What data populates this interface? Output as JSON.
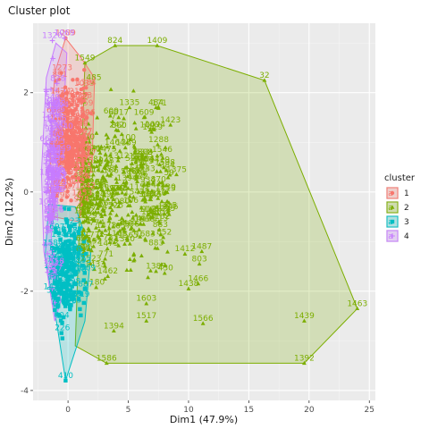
{
  "chart_data": {
    "type": "scatter",
    "title": "Cluster plot",
    "xlabel": "Dim1 (47.9%)",
    "ylabel": "Dim2 (12.2%)",
    "xlim": [
      -2.9,
      25.5
    ],
    "ylim": [
      -4.2,
      3.4
    ],
    "x_ticks": [
      0,
      5,
      10,
      15,
      20,
      25
    ],
    "y_ticks": [
      -4,
      -2,
      0,
      2
    ],
    "x_tick_labels": [
      "0",
      "5",
      "10",
      "15",
      "20",
      "25"
    ],
    "y_tick_labels": [
      "-4",
      "-2",
      "0",
      "2"
    ],
    "grid": true,
    "legend": {
      "title": "cluster",
      "position": "right",
      "entries": [
        "1",
        "2",
        "3",
        "4"
      ]
    },
    "series": [
      {
        "name": "1",
        "color": "#F8766D",
        "marker": "circle",
        "hull": [
          [
            -0.2,
            3.1
          ],
          [
            1.1,
            2.7
          ],
          [
            2.2,
            2.3
          ],
          [
            2.0,
            0.6
          ],
          [
            0.9,
            -0.6
          ],
          [
            -1.2,
            -0.5
          ],
          [
            -1.5,
            0.8
          ],
          [
            -1.1,
            2.4
          ]
        ],
        "labeled_points": [
          {
            "x": -0.2,
            "y": 3.1,
            "label": "1289"
          },
          {
            "x": 1.5,
            "y": 2.1,
            "label": "1384"
          }
        ],
        "scatter_region": {
          "x": [
            -1.4,
            1.9
          ],
          "y": [
            -0.5,
            2.6
          ],
          "n": 260
        }
      },
      {
        "name": "2",
        "color": "#7CAE00",
        "marker": "triangle",
        "hull": [
          [
            3.9,
            2.95
          ],
          [
            7.4,
            2.95
          ],
          [
            16.3,
            2.25
          ],
          [
            24.0,
            -2.35
          ],
          [
            19.6,
            -3.45
          ],
          [
            3.2,
            -3.45
          ],
          [
            0.6,
            -3.1
          ],
          [
            1.4,
            2.6
          ]
        ],
        "labeled_points": [
          {
            "x": 3.9,
            "y": 2.95,
            "label": "824"
          },
          {
            "x": 7.4,
            "y": 2.95,
            "label": "1409"
          },
          {
            "x": 16.3,
            "y": 2.25,
            "label": "32"
          },
          {
            "x": 1.4,
            "y": 2.6,
            "label": "1549"
          },
          {
            "x": 5.1,
            "y": 1.7,
            "label": "1335"
          },
          {
            "x": 7.3,
            "y": 1.7,
            "label": "484"
          },
          {
            "x": 4.2,
            "y": 1.5,
            "label": "6017"
          },
          {
            "x": 6.3,
            "y": 1.5,
            "label": "1609"
          },
          {
            "x": 6.8,
            "y": 1.25,
            "label": "1047"
          },
          {
            "x": 8.5,
            "y": 1.35,
            "label": "1423"
          },
          {
            "x": 6.4,
            "y": 0.7,
            "label": "808"
          },
          {
            "x": 7.6,
            "y": 0.55,
            "label": "1419"
          },
          {
            "x": 9.0,
            "y": 0.35,
            "label": "1375"
          },
          {
            "x": 7.5,
            "y": 0.15,
            "label": "870"
          },
          {
            "x": 8.1,
            "y": 0.0,
            "label": "1230"
          },
          {
            "x": 8.3,
            "y": -0.4,
            "label": "1346"
          },
          {
            "x": 6.8,
            "y": -0.15,
            "label": "1462"
          },
          {
            "x": 6.4,
            "y": -0.95,
            "label": "1683"
          },
          {
            "x": 4.7,
            "y": -1.05,
            "label": "1340"
          },
          {
            "x": 9.7,
            "y": -1.25,
            "label": "1412"
          },
          {
            "x": 11.1,
            "y": -1.2,
            "label": "1487"
          },
          {
            "x": 10.9,
            "y": -1.45,
            "label": "803"
          },
          {
            "x": 7.3,
            "y": -1.6,
            "label": "1387"
          },
          {
            "x": 3.3,
            "y": -1.7,
            "label": "1462"
          },
          {
            "x": 10.8,
            "y": -1.85,
            "label": "1466"
          },
          {
            "x": 10.0,
            "y": -1.95,
            "label": "1438"
          },
          {
            "x": 6.5,
            "y": -2.25,
            "label": "1603"
          },
          {
            "x": 24.0,
            "y": -2.35,
            "label": "1463"
          },
          {
            "x": 19.6,
            "y": -2.6,
            "label": "1439"
          },
          {
            "x": 6.5,
            "y": -2.6,
            "label": "1517"
          },
          {
            "x": 11.2,
            "y": -2.65,
            "label": "1566"
          },
          {
            "x": 3.8,
            "y": -2.8,
            "label": "1394"
          },
          {
            "x": 19.6,
            "y": -3.45,
            "label": "1392"
          },
          {
            "x": 3.2,
            "y": -3.45,
            "label": "1586"
          }
        ],
        "scatter_region": {
          "x": [
            1.2,
            8.5
          ],
          "y": [
            -1.9,
            1.9
          ],
          "n": 420
        }
      },
      {
        "name": "3",
        "color": "#00BFC4",
        "marker": "square",
        "hull": [
          [
            -1.6,
            -0.25
          ],
          [
            0.6,
            -0.3
          ],
          [
            1.9,
            -1.2
          ],
          [
            1.4,
            -2.6
          ],
          [
            -0.2,
            -3.8
          ],
          [
            -0.9,
            -2.7
          ],
          [
            -1.9,
            -1.3
          ]
        ],
        "labeled_points": [
          {
            "x": -0.2,
            "y": -3.8,
            "label": "410"
          }
        ],
        "scatter_region": {
          "x": [
            -1.8,
            1.5
          ],
          "y": [
            -2.9,
            -0.3
          ],
          "n": 240
        }
      },
      {
        "name": "4",
        "color": "#C77CFF",
        "marker": "plus",
        "hull": [
          [
            -1.0,
            3.0
          ],
          [
            -0.1,
            2.8
          ],
          [
            -0.6,
            0.6
          ],
          [
            -1.4,
            -0.9
          ],
          [
            -0.6,
            -2.2
          ],
          [
            -1.1,
            -2.6
          ],
          [
            -2.0,
            -1.2
          ],
          [
            -2.2,
            0.4
          ],
          [
            -1.8,
            2.3
          ]
        ],
        "labeled_points": [
          {
            "x": -1.3,
            "y": 3.05,
            "label": "1320"
          },
          {
            "x": -0.3,
            "y": 3.1,
            "label": "1069"
          }
        ],
        "scatter_region": {
          "x": [
            -2.0,
            -0.4
          ],
          "y": [
            -2.4,
            2.9
          ],
          "n": 220
        }
      }
    ]
  }
}
